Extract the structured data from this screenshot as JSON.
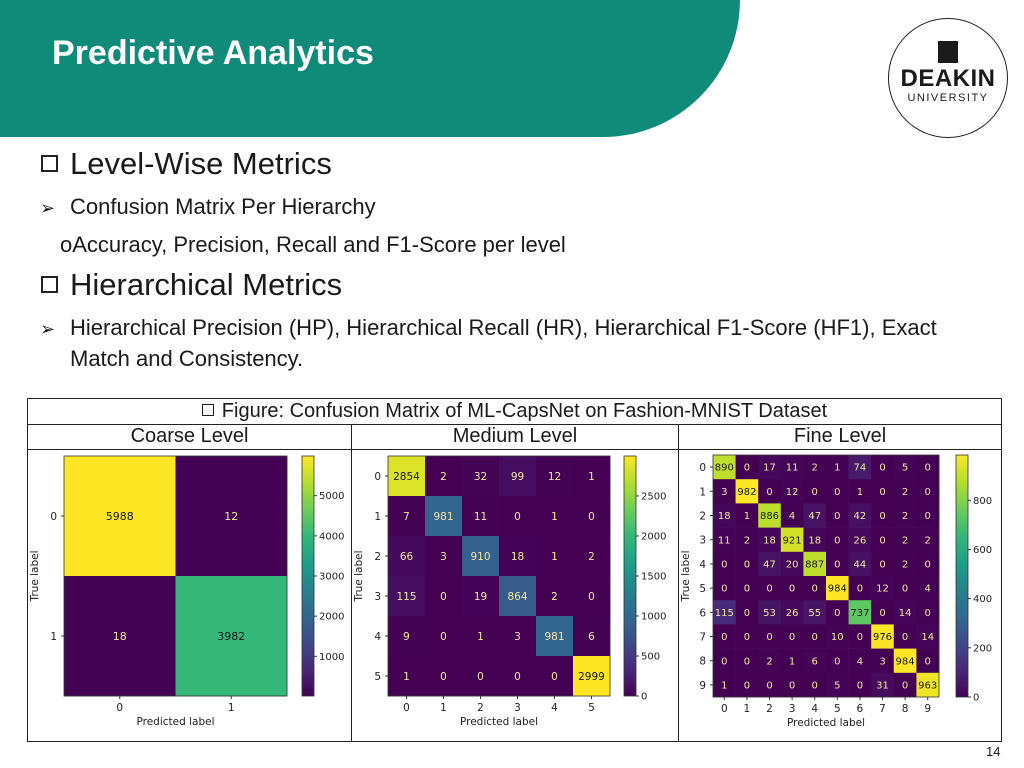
{
  "header": {
    "title": "Predictive Analytics"
  },
  "logo": {
    "name": "DEAKIN",
    "subtitle": "UNIVERSITY"
  },
  "bullets": [
    {
      "level": 1,
      "marker": "square",
      "text": "Level-Wise Metrics"
    },
    {
      "level": 2,
      "marker": "arrow",
      "text": "Confusion Matrix Per Hierarchy"
    },
    {
      "level": 3,
      "marker": "circle",
      "text": "Accuracy, Precision, Recall and F1-Score per level"
    },
    {
      "level": 1,
      "marker": "square",
      "text": "Hierarchical Metrics"
    },
    {
      "level": 2,
      "marker": "arrow",
      "text": "Hierarchical Precision (HP), Hierarchical Recall (HR), Hierarchical F1-Score (HF1), Exact"
    },
    {
      "level": 2,
      "marker": "none",
      "text": "Match and Consistency."
    }
  ],
  "figure": {
    "caption": "Figure: Confusion Matrix of ML-CapsNet on Fashion-MNIST Dataset",
    "panels": [
      "Coarse Level",
      "Medium Level",
      "Fine Level"
    ]
  },
  "chart_data": [
    {
      "type": "heatmap",
      "title": "Coarse Level",
      "xlabel": "Predicted label",
      "ylabel": "True label",
      "x_ticks": [
        "0",
        "1"
      ],
      "y_ticks": [
        "0",
        "1"
      ],
      "colorscale": "viridis",
      "vmax": 5988,
      "colorbar_ticks": [
        1000,
        2000,
        3000,
        4000,
        5000
      ],
      "matrix": [
        [
          5988,
          12
        ],
        [
          18,
          3982
        ]
      ]
    },
    {
      "type": "heatmap",
      "title": "Medium Level",
      "xlabel": "Predicted label",
      "ylabel": "True label",
      "x_ticks": [
        "0",
        "1",
        "2",
        "3",
        "4",
        "5"
      ],
      "y_ticks": [
        "0",
        "1",
        "2",
        "3",
        "4",
        "5"
      ],
      "colorscale": "viridis",
      "vmax": 2999,
      "colorbar_ticks": [
        0,
        500,
        1000,
        1500,
        2000,
        2500
      ],
      "matrix": [
        [
          2854,
          2,
          32,
          99,
          12,
          1
        ],
        [
          7,
          981,
          11,
          0,
          1,
          0
        ],
        [
          66,
          3,
          910,
          18,
          1,
          2
        ],
        [
          115,
          0,
          19,
          864,
          2,
          0
        ],
        [
          9,
          0,
          1,
          3,
          981,
          6
        ],
        [
          1,
          0,
          0,
          0,
          0,
          2999
        ]
      ]
    },
    {
      "type": "heatmap",
      "title": "Fine Level",
      "xlabel": "Predicted label",
      "ylabel": "True label",
      "x_ticks": [
        "0",
        "1",
        "2",
        "3",
        "4",
        "5",
        "6",
        "7",
        "8",
        "9"
      ],
      "y_ticks": [
        "0",
        "1",
        "2",
        "3",
        "4",
        "5",
        "6",
        "7",
        "8",
        "9"
      ],
      "colorscale": "viridis",
      "vmax": 984,
      "colorbar_ticks": [
        0,
        200,
        400,
        600,
        800
      ],
      "matrix": [
        [
          890,
          0,
          17,
          11,
          2,
          1,
          74,
          0,
          5,
          0
        ],
        [
          3,
          982,
          0,
          12,
          0,
          0,
          1,
          0,
          2,
          0
        ],
        [
          18,
          1,
          886,
          4,
          47,
          0,
          42,
          0,
          2,
          0
        ],
        [
          11,
          2,
          18,
          921,
          18,
          0,
          26,
          0,
          2,
          2
        ],
        [
          0,
          0,
          47,
          20,
          887,
          0,
          44,
          0,
          2,
          0
        ],
        [
          0,
          0,
          0,
          0,
          0,
          984,
          0,
          12,
          0,
          4
        ],
        [
          115,
          0,
          53,
          26,
          55,
          0,
          737,
          0,
          14,
          0
        ],
        [
          0,
          0,
          0,
          0,
          0,
          10,
          0,
          976,
          0,
          14
        ],
        [
          0,
          0,
          2,
          1,
          6,
          0,
          4,
          3,
          984,
          0
        ],
        [
          1,
          0,
          0,
          0,
          0,
          5,
          0,
          31,
          0,
          963
        ]
      ]
    }
  ],
  "page": {
    "number": "14"
  }
}
